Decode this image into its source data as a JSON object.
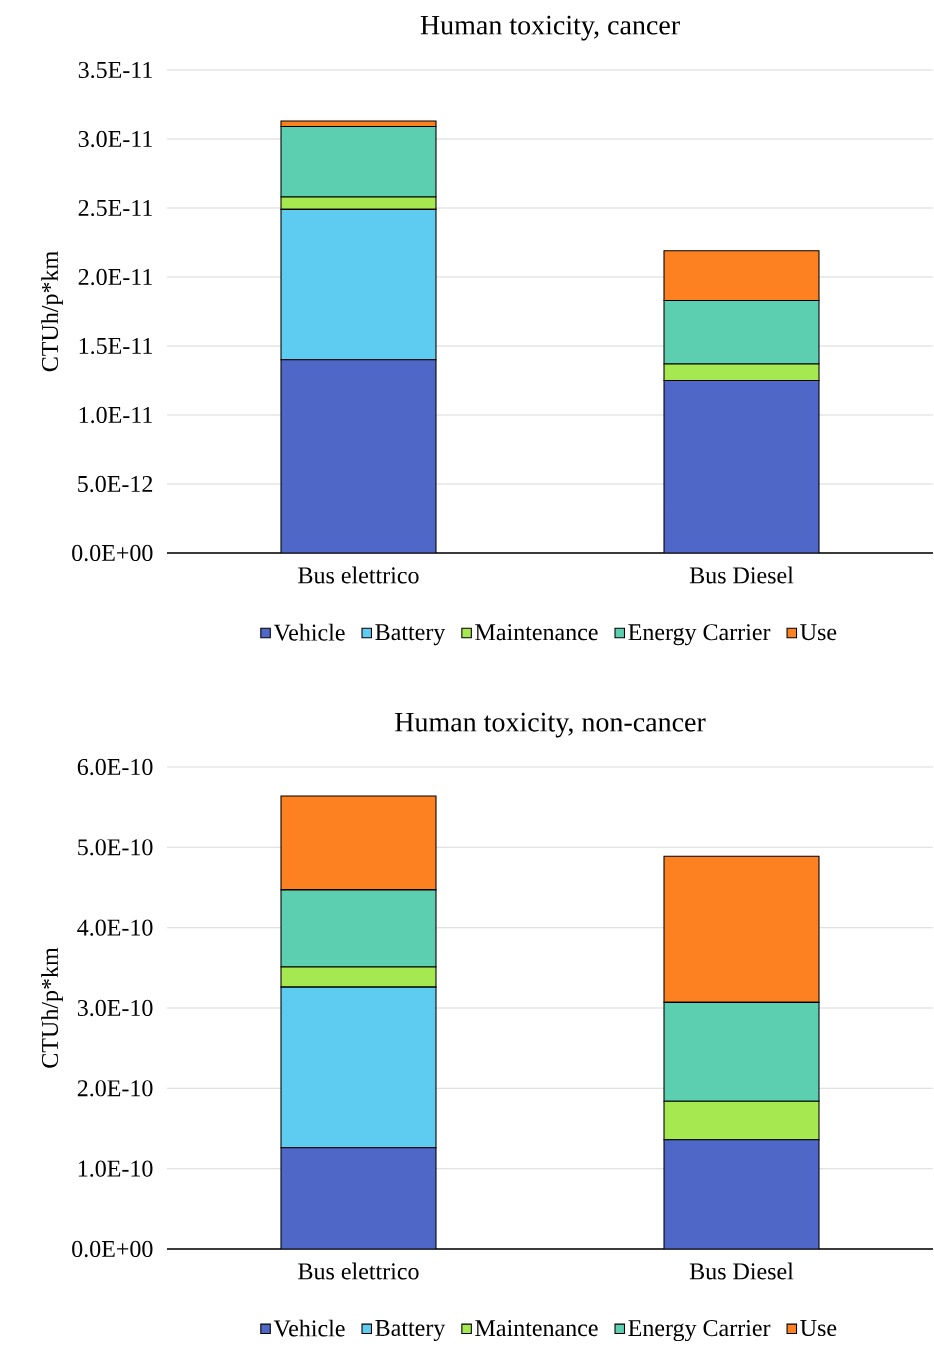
{
  "chart_data": [
    {
      "type": "bar",
      "stacked": true,
      "title": "Human toxicity, cancer",
      "ylabel": "CTUh/p*km",
      "categories": [
        "Bus elettrico",
        "Bus Diesel"
      ],
      "series": [
        {
          "name": "Vehicle",
          "color": "#4f67c6",
          "values": [
            1.4e-11,
            1.25e-11
          ]
        },
        {
          "name": "Battery",
          "color": "#5ecbf1",
          "values": [
            1.09e-11,
            0
          ]
        },
        {
          "name": "Maintenance",
          "color": "#a6e84f",
          "values": [
            9e-13,
            1.2e-12
          ]
        },
        {
          "name": "Energy Carrier",
          "color": "#5ccfb0",
          "values": [
            5.1e-12,
            4.6e-12
          ]
        },
        {
          "name": "Use",
          "color": "#fd8120",
          "values": [
            4e-13,
            3.6e-12
          ]
        }
      ],
      "ylim": [
        0,
        3.5e-11
      ],
      "yticks": [
        {
          "value": 0,
          "label": "0.0E+00"
        },
        {
          "value": 5e-12,
          "label": "5.0E-12"
        },
        {
          "value": 1e-11,
          "label": "1.0E-11"
        },
        {
          "value": 1.5e-11,
          "label": "1.5E-11"
        },
        {
          "value": 2e-11,
          "label": "2.0E-11"
        },
        {
          "value": 2.5e-11,
          "label": "2.5E-11"
        },
        {
          "value": 3e-11,
          "label": "3.0E-11"
        },
        {
          "value": 3.5e-11,
          "label": "3.5E-11"
        }
      ],
      "grid": "y",
      "legend": "bottom"
    },
    {
      "type": "bar",
      "stacked": true,
      "title": "Human toxicity, non-cancer",
      "ylabel": "CTUh/p*km",
      "categories": [
        "Bus elettrico",
        "Bus Diesel"
      ],
      "series": [
        {
          "name": "Vehicle",
          "color": "#4f67c6",
          "values": [
            1.26e-10,
            1.36e-10
          ]
        },
        {
          "name": "Battery",
          "color": "#5ecbf1",
          "values": [
            2e-10,
            0
          ]
        },
        {
          "name": "Maintenance",
          "color": "#a6e84f",
          "values": [
            2.5e-11,
            4.8e-11
          ]
        },
        {
          "name": "Energy Carrier",
          "color": "#5ccfb0",
          "values": [
            9.6e-11,
            1.23e-10
          ]
        },
        {
          "name": "Use",
          "color": "#fd8120",
          "values": [
            1.17e-10,
            1.82e-10
          ]
        }
      ],
      "ylim": [
        0,
        6e-10
      ],
      "yticks": [
        {
          "value": 0,
          "label": "0.0E+00"
        },
        {
          "value": 1e-10,
          "label": "1.0E-10"
        },
        {
          "value": 2e-10,
          "label": "2.0E-10"
        },
        {
          "value": 3e-10,
          "label": "3.0E-10"
        },
        {
          "value": 4e-10,
          "label": "4.0E-10"
        },
        {
          "value": 5e-10,
          "label": "5.0E-10"
        },
        {
          "value": 6e-10,
          "label": "6.0E-10"
        }
      ],
      "grid": "y",
      "legend": "bottom"
    }
  ]
}
